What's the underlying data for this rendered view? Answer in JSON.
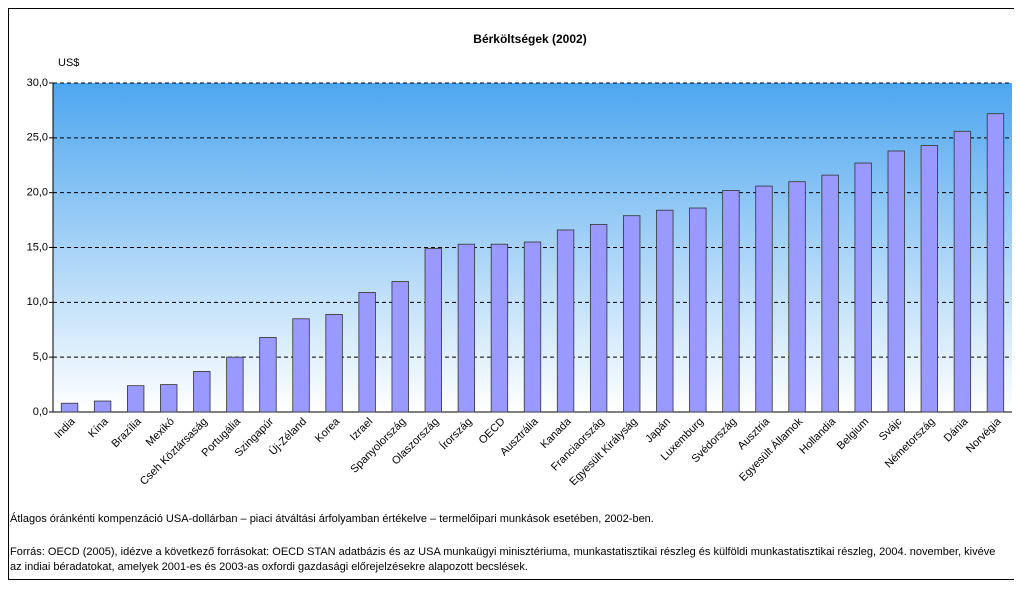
{
  "chart_data": {
    "type": "bar",
    "title": "Bérköltségek (2002)",
    "y_label": "US$",
    "categories": [
      "India",
      "Kína",
      "Brazília",
      "Mexikó",
      "Cseh Köztársaság",
      "Portugália",
      "Szingapúr",
      "Új-Zéland",
      "Korea",
      "Izrael",
      "Spanyolország",
      "Olaszország",
      "Írország",
      "OECD",
      "Ausztrália",
      "Kanada",
      "Franciaország",
      "Egyesült Királyság",
      "Japán",
      "Luxemburg",
      "Svédország",
      "Ausztria",
      "Egyesült Államok",
      "Hollandia",
      "Belgium",
      "Svájc",
      "Németország",
      "Dánia",
      "Norvégia"
    ],
    "values": [
      0.8,
      1.0,
      2.4,
      2.5,
      3.7,
      5.0,
      6.8,
      8.5,
      8.9,
      10.9,
      11.9,
      14.9,
      15.3,
      15.3,
      15.5,
      16.6,
      17.1,
      17.9,
      18.4,
      18.6,
      20.2,
      20.6,
      21.0,
      21.6,
      22.7,
      23.8,
      24.3,
      25.6,
      27.2
    ],
    "color": "#9999ff",
    "ylim": [
      0,
      30
    ],
    "yticks": [
      {
        "value": 0,
        "label": "0,0"
      },
      {
        "value": 5,
        "label": "5,0"
      },
      {
        "value": 10,
        "label": "10,0"
      },
      {
        "value": 15,
        "label": "15,0"
      },
      {
        "value": 20,
        "label": "20,0"
      },
      {
        "value": 25,
        "label": "25,0"
      },
      {
        "value": 30,
        "label": "30,0"
      }
    ],
    "grid": true,
    "notes": [
      "Átlagos óránkénti kompenzáció USA-dollárban – piaci átváltási árfolyamban értékelve – termelőipari munkások esetében, 2002-ben.",
      "Forrás: OECD (2005), idézve a következő forrásokat: OECD STAN adatbázis és az USA munkaügyi minisztériuma, munkastatisztikai részleg és külföldi munkastatisztikai részleg, 2004. november, kivéve az indiai béradatokat, amelyek 2001-es és 2003-as oxfordi gazdasági előrejelzésekre alapozott becslések."
    ]
  }
}
